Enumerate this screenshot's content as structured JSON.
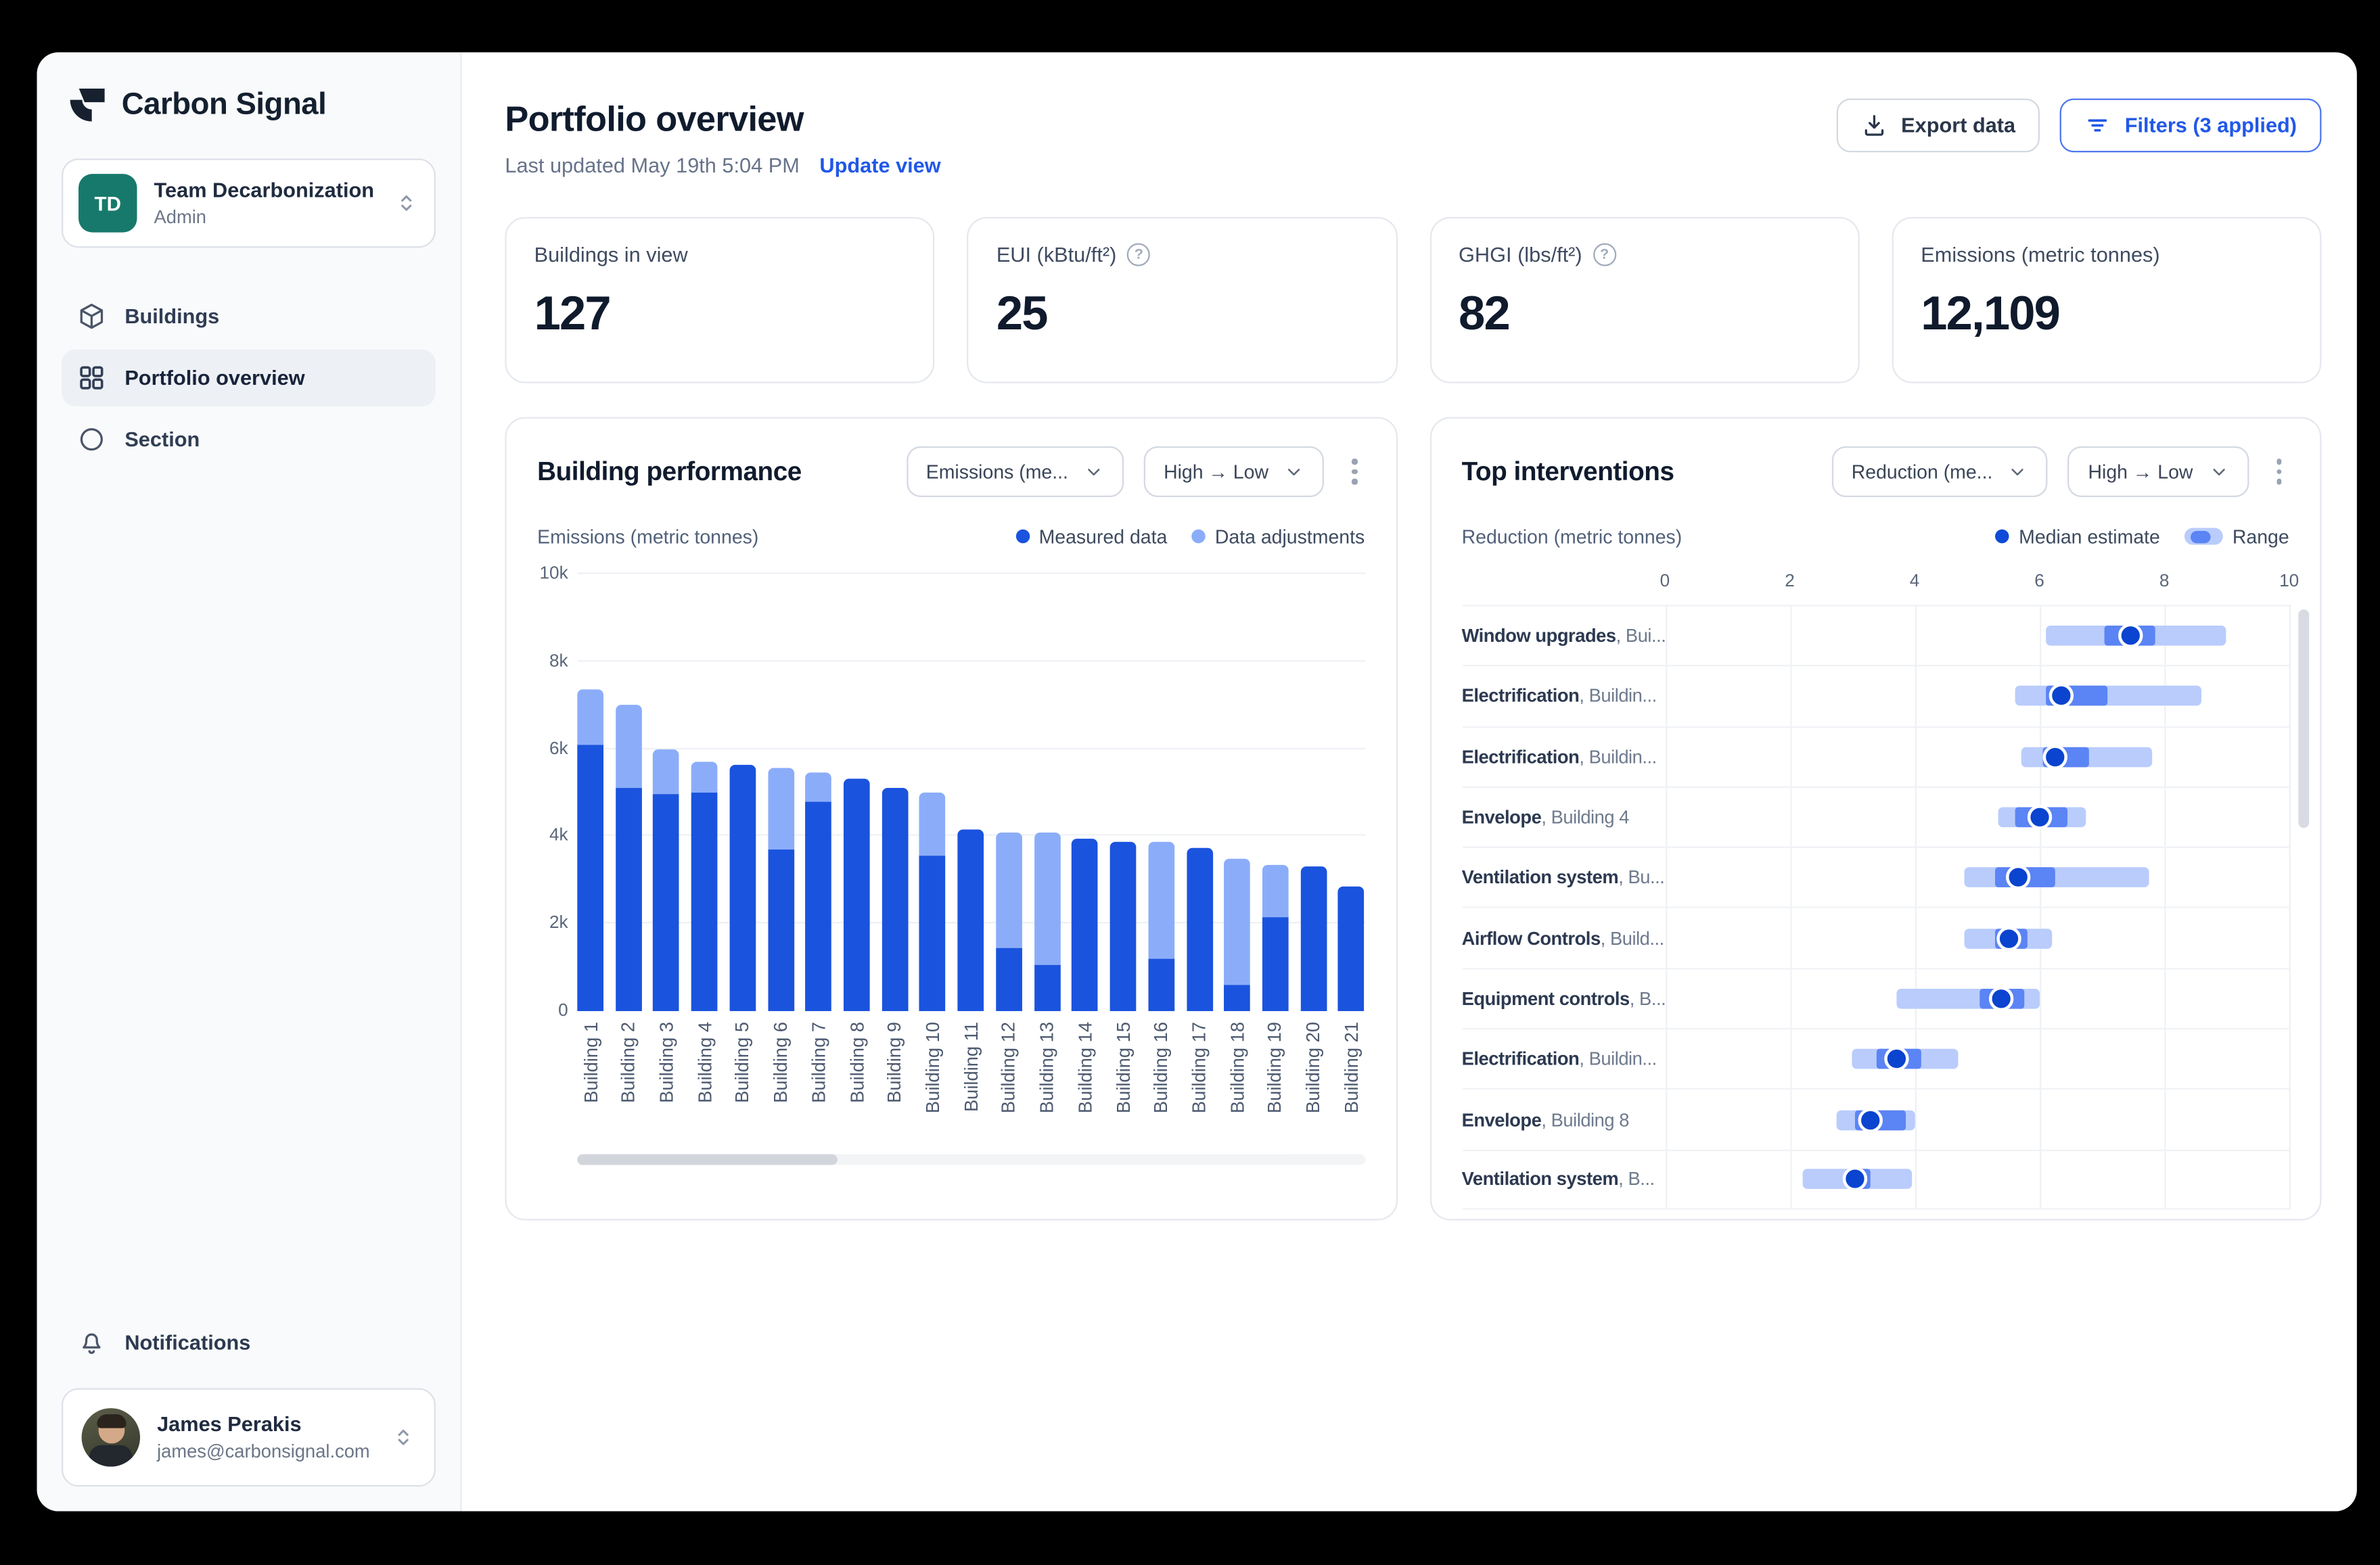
{
  "colors": {
    "brand_navy": "#16202f",
    "accent_blue": "#2158e8",
    "teal_avatar": "#17796b",
    "measured": "#1a53dd",
    "adjustment": "#8badf9",
    "range": "#b9ccfc",
    "band": "#5b84f4",
    "median_dot": "#0a44cf"
  },
  "sidebar": {
    "brand": "Carbon Signal",
    "team": {
      "initials": "TD",
      "name": "Team Decarbonization",
      "role": "Admin"
    },
    "nav": [
      {
        "label": "Buildings",
        "icon": "cube-icon",
        "active": false
      },
      {
        "label": "Portfolio overview",
        "icon": "grid-icon",
        "active": true
      },
      {
        "label": "Section",
        "icon": "circle-icon",
        "active": false
      }
    ],
    "notifications_label": "Notifications",
    "user": {
      "name": "James Perakis",
      "email": "james@carbonsignal.com"
    }
  },
  "header": {
    "title": "Portfolio overview",
    "last_updated": "Last updated May 19th 5:04 PM",
    "update_link": "Update view",
    "export_label": "Export data",
    "filters_label": "Filters (3 applied)"
  },
  "stats": [
    {
      "label": "Buildings in view",
      "value": "127",
      "help": false
    },
    {
      "label": "EUI (kBtu/ft²)",
      "value": "25",
      "help": true
    },
    {
      "label": "GHGI (lbs/ft²)",
      "value": "82",
      "help": true
    },
    {
      "label": "Emissions (metric tonnes)",
      "value": "12,109",
      "help": false
    }
  ],
  "chart_data": [
    {
      "type": "bar",
      "stacked": true,
      "title": "Building performance",
      "controls": {
        "metric": "Emissions (me...",
        "sort": "High → Low"
      },
      "ylabel": "Emissions (metric tonnes)",
      "legend": [
        "Measured data",
        "Data adjustments"
      ],
      "ylim": [
        0,
        10000
      ],
      "ytick_values": [
        0,
        2000,
        4000,
        6000,
        8000,
        10000
      ],
      "yticks": [
        "0",
        "2k",
        "4k",
        "6k",
        "8k",
        "10k"
      ],
      "categories": [
        "Building 1",
        "Building 2",
        "Building 3",
        "Building 4",
        "Building 5",
        "Building 6",
        "Building 7",
        "Building 8",
        "Building 9",
        "Building 10",
        "Building 11",
        "Building 12",
        "Building 13",
        "Building 14",
        "Building 15",
        "Building 16",
        "Building 17",
        "Building 18",
        "Building 19",
        "Building 20",
        "Building 21"
      ],
      "series": [
        {
          "name": "Measured data",
          "values": [
            6100,
            5100,
            4950,
            5000,
            5650,
            3700,
            4800,
            5300,
            5100,
            3550,
            4150,
            1450,
            1050,
            3950,
            3870,
            1200,
            3750,
            600,
            2150,
            3300,
            2850
          ]
        },
        {
          "name": "Data adjustments",
          "values": [
            1250,
            1900,
            1050,
            700,
            0,
            1850,
            650,
            0,
            0,
            1450,
            0,
            2650,
            3050,
            0,
            0,
            2670,
            0,
            2900,
            1200,
            0,
            0
          ]
        }
      ]
    },
    {
      "type": "range-dot",
      "title": "Top interventions",
      "controls": {
        "metric": "Reduction (me...",
        "sort": "High → Low"
      },
      "xlabel": "Reduction (metric tonnes)",
      "legend": [
        "Median estimate",
        "Range"
      ],
      "xlim": [
        0,
        10
      ],
      "xtick_values": [
        0,
        2,
        4,
        6,
        8,
        10
      ],
      "xticks": [
        "0",
        "2",
        "4",
        "6",
        "8",
        "10"
      ],
      "rows": [
        {
          "name": "Window upgrades",
          "building": "Bui...",
          "range": [
            6.1,
            9.0
          ],
          "band": [
            7.05,
            7.85
          ],
          "median": 7.45
        },
        {
          "name": "Electrification",
          "building": "Buildin...",
          "range": [
            5.6,
            8.6
          ],
          "band": [
            6.1,
            7.1
          ],
          "median": 6.35
        },
        {
          "name": "Electrification",
          "building": "Buildin...",
          "range": [
            5.7,
            7.8
          ],
          "band": [
            6.05,
            6.8
          ],
          "median": 6.25
        },
        {
          "name": "Envelope",
          "building": "Building 4",
          "range": [
            5.35,
            6.75
          ],
          "band": [
            5.6,
            6.45
          ],
          "median": 6.0
        },
        {
          "name": "Ventilation system",
          "building": "Bu...",
          "range": [
            4.8,
            7.75
          ],
          "band": [
            5.3,
            6.25
          ],
          "median": 5.65
        },
        {
          "name": "Airflow Controls",
          "building": "Build...",
          "range": [
            4.8,
            6.2
          ],
          "band": [
            5.3,
            5.8
          ],
          "median": 5.5
        },
        {
          "name": "Equipment controls",
          "building": "B...",
          "range": [
            3.7,
            6.0
          ],
          "band": [
            5.05,
            5.75
          ],
          "median": 5.4
        },
        {
          "name": "Electrification",
          "building": "Buildin...",
          "range": [
            3.0,
            4.7
          ],
          "band": [
            3.4,
            4.1
          ],
          "median": 3.7
        },
        {
          "name": "Envelope",
          "building": "Building 8",
          "range": [
            2.75,
            4.0
          ],
          "band": [
            3.05,
            3.85
          ],
          "median": 3.3
        },
        {
          "name": "Ventilation system",
          "building": "B...",
          "range": [
            2.2,
            3.95
          ],
          "band": [
            2.9,
            3.3
          ],
          "median": 3.05
        }
      ]
    }
  ]
}
